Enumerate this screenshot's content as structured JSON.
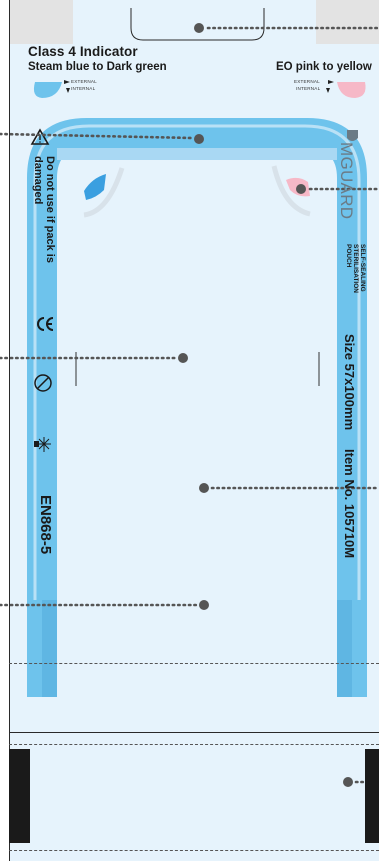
{
  "left_indicator": {
    "title": "Class 4 Indicator",
    "subtitle": "Steam blue to Dark green",
    "legend_external": "EXTERNAL",
    "legend_internal": "INTERNAL",
    "color": "#6ec3ec"
  },
  "right_indicator": {
    "title": "EO pink to yellow",
    "legend_external": "EXTERNAL",
    "legend_internal": "INTERNAL",
    "color": "#f6b8c7"
  },
  "warning_text": "Do not use if pack is damaged",
  "ce_mark": "CE",
  "single_use_symbol": "2",
  "standard": "EN868-5",
  "brand": "MGUARD",
  "product_lines": [
    "SELF-SEALING",
    "STERILISATION",
    "POUCH"
  ],
  "size": "Size 57x100mm",
  "item": "Item No. 105710M",
  "colors": {
    "pouch_bg": "#e6f3fc",
    "seal_band": "#6ec3ec",
    "pointer": "#555555"
  }
}
